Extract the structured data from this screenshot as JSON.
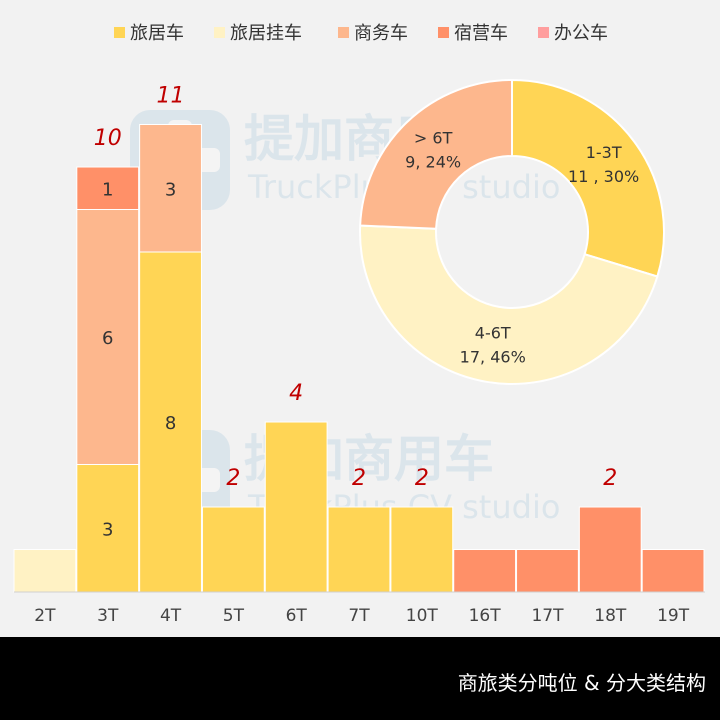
{
  "footer": {
    "caption": "商旅类分吨位 & 分大类结构"
  },
  "watermark": {
    "brand": "提加商用车",
    "sub": "TruckPlus CV studio"
  },
  "colors": {
    "旅居车": "#ffd555",
    "旅居挂车": "#fff2c4",
    "商务车": "#fdb78d",
    "宿营车": "#ff9068",
    "办公车": "#ff9e9e",
    "total_label": "#c00000",
    "segment_label": "#333333"
  },
  "chart_data": [
    {
      "type": "bar",
      "stacked": true,
      "categories": [
        "2T",
        "3T",
        "4T",
        "5T",
        "6T",
        "7T",
        "10T",
        "16T",
        "17T",
        "18T",
        "19T"
      ],
      "series": [
        {
          "name": "旅居车",
          "values": [
            0,
            3,
            8,
            2,
            4,
            2,
            2,
            0,
            0,
            0,
            0
          ]
        },
        {
          "name": "旅居挂车",
          "values": [
            1,
            0,
            0,
            0,
            0,
            0,
            0,
            0,
            0,
            0,
            0
          ]
        },
        {
          "name": "商务车",
          "values": [
            0,
            6,
            3,
            0,
            0,
            0,
            0,
            0,
            0,
            0,
            0
          ]
        },
        {
          "name": "宿营车",
          "values": [
            0,
            1,
            0,
            0,
            0,
            0,
            0,
            1,
            1,
            2,
            1
          ]
        },
        {
          "name": "办公车",
          "values": [
            0,
            0,
            0,
            0,
            0,
            0,
            0,
            0,
            0,
            0,
            0
          ]
        }
      ],
      "segment_labels": [
        {
          "category": "3T",
          "series": "旅居车",
          "text": "3"
        },
        {
          "category": "3T",
          "series": "商务车",
          "text": "6"
        },
        {
          "category": "3T",
          "series": "宿营车",
          "text": "1"
        },
        {
          "category": "4T",
          "series": "旅居车",
          "text": "8"
        },
        {
          "category": "4T",
          "series": "商务车",
          "text": "3"
        }
      ],
      "total_labels": [
        {
          "category": "3T",
          "text": "10"
        },
        {
          "category": "4T",
          "text": "11"
        },
        {
          "category": "5T",
          "text": "2"
        },
        {
          "category": "6T",
          "text": "4"
        },
        {
          "category": "7T",
          "text": "2"
        },
        {
          "category": "10T",
          "text": "2"
        },
        {
          "category": "18T",
          "text": "2"
        }
      ],
      "ylim": [
        0,
        11
      ],
      "grid": false,
      "legend": "top-center",
      "legend_items": [
        "旅居车",
        "旅居挂车",
        "商务车",
        "宿营车",
        "办公车"
      ],
      "title": "",
      "xlabel": "",
      "ylabel": ""
    },
    {
      "type": "pie",
      "donut": true,
      "slices": [
        {
          "label": "1-3T",
          "value": 11,
          "percent": "30%",
          "value_text": "11 , 30%",
          "color": "#ffd555"
        },
        {
          "label": "4-6T",
          "value": 17,
          "percent": "46%",
          "value_text": "17, 46%",
          "color": "#fff2c4"
        },
        {
          "label": "> 6T",
          "value": 9,
          "percent": "24%",
          "value_text": "9, 24%",
          "color": "#fdb78d"
        }
      ]
    }
  ]
}
